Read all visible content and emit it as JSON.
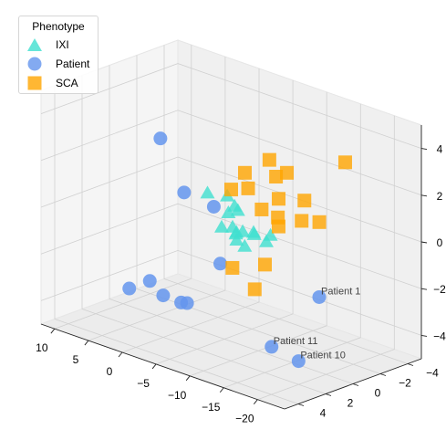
{
  "chart_data": {
    "type": "scatter",
    "title": "",
    "legend": {
      "title": "Phenotype",
      "placement": "top-left",
      "entries": [
        {
          "name": "IXI",
          "marker": "triangle",
          "color": "#40e0d0"
        },
        {
          "name": "Patient",
          "marker": "circle",
          "color": "#6495ed"
        },
        {
          "name": "SCA",
          "marker": "square",
          "color": "#ffa500"
        }
      ]
    },
    "axes": {
      "x": {
        "ticks": [
          10,
          5,
          0,
          -5,
          -10,
          -15,
          -20
        ],
        "range": [
          12,
          -24
        ]
      },
      "y": {
        "ticks": [
          -4,
          -2,
          0,
          2,
          4
        ],
        "range": [
          -5,
          5
        ]
      },
      "z": {
        "ticks": [
          -4,
          -2,
          0,
          2,
          4
        ],
        "range": [
          -5,
          5
        ]
      }
    },
    "grid": true,
    "series": [
      {
        "name": "IXI",
        "points": [
          {
            "x": -2.5,
            "y": 0.0,
            "z": 1.0
          },
          {
            "x": -4.6,
            "y": -0.4,
            "z": 1.0
          },
          {
            "x": -6.3,
            "y": -0.1,
            "z": 0.8
          },
          {
            "x": -7.2,
            "y": 0.8,
            "z": 0.8
          },
          {
            "x": -5.8,
            "y": 0.6,
            "z": 0.0
          },
          {
            "x": -6.6,
            "y": 0.2,
            "z": 0.0
          },
          {
            "x": -8.4,
            "y": 0.7,
            "z": 1.0
          },
          {
            "x": -8.3,
            "y": 0.3,
            "z": 0.0
          },
          {
            "x": -8.0,
            "y": 0.6,
            "z": 0.0
          },
          {
            "x": -9.3,
            "y": 0.0,
            "z": 0.0
          },
          {
            "x": -9.8,
            "y": 0.2,
            "z": 0.0
          },
          {
            "x": -7.2,
            "y": 0.2,
            "z": -0.5
          },
          {
            "x": -8.6,
            "y": 0.3,
            "z": -0.6
          },
          {
            "x": -11.2,
            "y": -0.3,
            "z": 0.0
          },
          {
            "x": -12.2,
            "y": 0.5,
            "z": 0.0
          },
          {
            "x": -8.3,
            "y": 0.8,
            "z": 0.0
          }
        ]
      },
      {
        "name": "Patient",
        "points": [
          {
            "x": 7.5,
            "y": -1.5,
            "z": 2.0
          },
          {
            "x": 4.2,
            "y": -1.6,
            "z": 0.0
          },
          {
            "x": -1.0,
            "y": -1.2,
            "z": 0.0
          },
          {
            "x": -6.0,
            "y": 0.8,
            "z": -1.5
          },
          {
            "x": 1.0,
            "y": 0.2,
            "z": -4.0
          },
          {
            "x": -1.5,
            "y": 1.0,
            "z": -3.6
          },
          {
            "x": 3.0,
            "y": 1.5,
            "z": -3.0
          },
          {
            "x": 3.0,
            "y": 3.0,
            "z": -3.0
          },
          {
            "x": -1.0,
            "y": 2.5,
            "z": -3.0
          },
          {
            "x": -18.0,
            "y": -0.5,
            "z": -2.0,
            "label": "Patient 1"
          },
          {
            "x": -15.0,
            "y": 1.5,
            "z": -4.0,
            "label": "Patient 11"
          },
          {
            "x": -20.0,
            "y": 2.0,
            "z": -4.0,
            "label": "Patient 10"
          }
        ]
      },
      {
        "name": "SCA",
        "points": [
          {
            "x": -6.0,
            "y": -1.0,
            "z": 2.0
          },
          {
            "x": -7.6,
            "y": -2.0,
            "z": 2.5
          },
          {
            "x": -6.0,
            "y": 0.0,
            "z": 1.5
          },
          {
            "x": -8.5,
            "y": 0.0,
            "z": 1.8
          },
          {
            "x": -10.6,
            "y": -1.0,
            "z": 2.3
          },
          {
            "x": -11.6,
            "y": -1.3,
            "z": 2.5
          },
          {
            "x": -12.0,
            "y": -0.5,
            "z": 1.6
          },
          {
            "x": -10.5,
            "y": 0.0,
            "z": 1.1
          },
          {
            "x": -12.9,
            "y": 0.0,
            "z": 1.0
          },
          {
            "x": -14.8,
            "y": -1.0,
            "z": 1.7
          },
          {
            "x": -15.4,
            "y": -0.5,
            "z": 1.0
          },
          {
            "x": -17.0,
            "y": -1.0,
            "z": 1.0
          },
          {
            "x": -18.2,
            "y": -2.3,
            "z": 3.4
          },
          {
            "x": -7.8,
            "y": 0.8,
            "z": -1.5
          },
          {
            "x": -12.0,
            "y": 0.5,
            "z": -1.0
          },
          {
            "x": -11.5,
            "y": 1.0,
            "z": -2.0
          },
          {
            "x": -12.4,
            "y": -0.3,
            "z": 0.5
          }
        ]
      }
    ]
  }
}
